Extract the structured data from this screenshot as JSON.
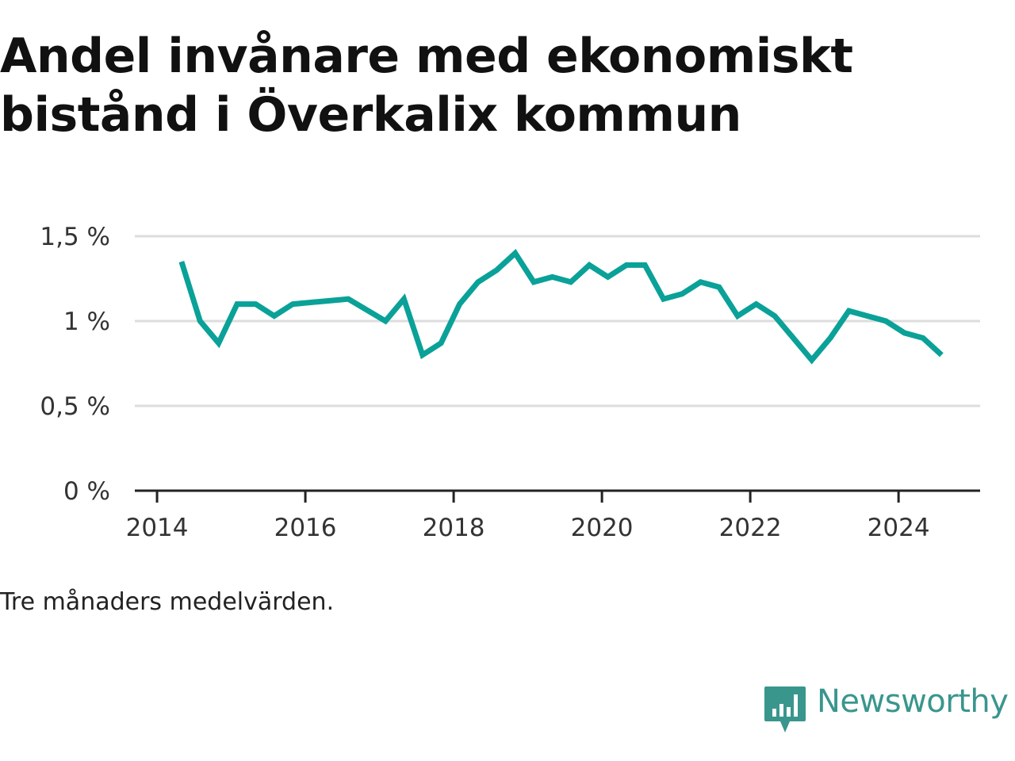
{
  "title_line1": "Andel invånare med ekonomiskt",
  "title_line2": "bistånd i Överkalix kommun",
  "note": "Tre månaders medelvärden.",
  "brand": {
    "name": "Newsworthy",
    "icon": "newsworthy-logo-icon",
    "color": "#39968d"
  },
  "colors": {
    "line": "#0aa198",
    "grid": "#dddddd",
    "axis": "#222222"
  },
  "chart_data": {
    "type": "line",
    "title": "Andel invånare med ekonomiskt bistånd i Överkalix kommun",
    "xlabel": "",
    "ylabel": "",
    "xlim": [
      2013.7,
      2025.1
    ],
    "ylim": [
      0,
      1.5
    ],
    "grid": true,
    "legend": "none",
    "yticks": [
      {
        "value": 0,
        "label": "0 %"
      },
      {
        "value": 0.5,
        "label": "0,5 %"
      },
      {
        "value": 1,
        "label": "1 %"
      },
      {
        "value": 1.5,
        "label": "1,5 %"
      }
    ],
    "xticks": [
      {
        "value": 2014,
        "label": "2014"
      },
      {
        "value": 2016,
        "label": "2016"
      },
      {
        "value": 2018,
        "label": "2018"
      },
      {
        "value": 2020,
        "label": "2020"
      },
      {
        "value": 2022,
        "label": "2022"
      },
      {
        "value": 2024,
        "label": "2024"
      }
    ],
    "series": [
      {
        "x": [
          2014.33,
          2014.58,
          2014.83,
          2015.08,
          2015.33,
          2015.58,
          2015.83,
          2016.58,
          2017.08,
          2017.33,
          2017.58,
          2017.83,
          2018.08,
          2018.33,
          2018.58,
          2018.83,
          2019.08,
          2019.33,
          2019.58,
          2019.83,
          2020.08,
          2020.33,
          2020.58,
          2020.83,
          2021.08,
          2021.33,
          2021.58,
          2021.83,
          2022.08,
          2022.33,
          2022.58,
          2022.83,
          2023.08,
          2023.33,
          2023.58,
          2023.83,
          2024.08,
          2024.33,
          2024.58
        ],
        "y": [
          1.35,
          1.0,
          0.87,
          1.1,
          1.1,
          1.03,
          1.1,
          1.13,
          1.0,
          1.13,
          0.8,
          0.87,
          1.1,
          1.23,
          1.3,
          1.4,
          1.23,
          1.26,
          1.23,
          1.33,
          1.26,
          1.33,
          1.33,
          1.13,
          1.16,
          1.23,
          1.2,
          1.03,
          1.1,
          1.03,
          0.9,
          0.77,
          0.9,
          1.06,
          1.03,
          1.0,
          0.93,
          0.9,
          0.8
        ]
      }
    ]
  }
}
